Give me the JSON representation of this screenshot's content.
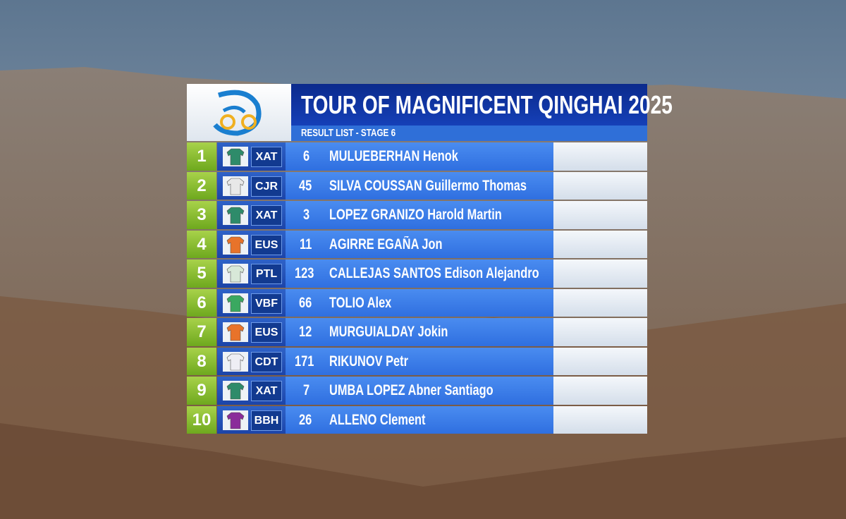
{
  "header": {
    "title": "TOUR OF MAGNIFICENT QINGHAI 2025",
    "subtitle": "RESULT LIST - STAGE 6"
  },
  "table": {
    "rows": [
      {
        "rank": "1",
        "team": "XAT",
        "bib": "6",
        "name": "MULUEBERHAN Henok",
        "jersey_color": "#2e8b6a"
      },
      {
        "rank": "2",
        "team": "CJR",
        "bib": "45",
        "name": "SILVA COUSSAN Guillermo Thomas",
        "jersey_color": "#e8e8e8"
      },
      {
        "rank": "3",
        "team": "XAT",
        "bib": "3",
        "name": "LOPEZ GRANIZO Harold Martin",
        "jersey_color": "#2e8b6a"
      },
      {
        "rank": "4",
        "team": "EUS",
        "bib": "11",
        "name": "AGIRRE EGAÑA Jon",
        "jersey_color": "#e8732a"
      },
      {
        "rank": "5",
        "team": "PTL",
        "bib": "123",
        "name": "CALLEJAS SANTOS Edison Alejandro",
        "jersey_color": "#d8e8d8"
      },
      {
        "rank": "6",
        "team": "VBF",
        "bib": "66",
        "name": "TOLIO Alex",
        "jersey_color": "#3aa860"
      },
      {
        "rank": "7",
        "team": "EUS",
        "bib": "12",
        "name": "MURGUIALDAY Jokin",
        "jersey_color": "#e8732a"
      },
      {
        "rank": "8",
        "team": "CDT",
        "bib": "171",
        "name": "RIKUNOV Petr",
        "jersey_color": "#eeeef4"
      },
      {
        "rank": "9",
        "team": "XAT",
        "bib": "7",
        "name": "UMBA LOPEZ Abner Santiago",
        "jersey_color": "#2e8b6a"
      },
      {
        "rank": "10",
        "team": "BBH",
        "bib": "26",
        "name": "ALLENO Clement",
        "jersey_color": "#8a2c9a"
      }
    ]
  }
}
